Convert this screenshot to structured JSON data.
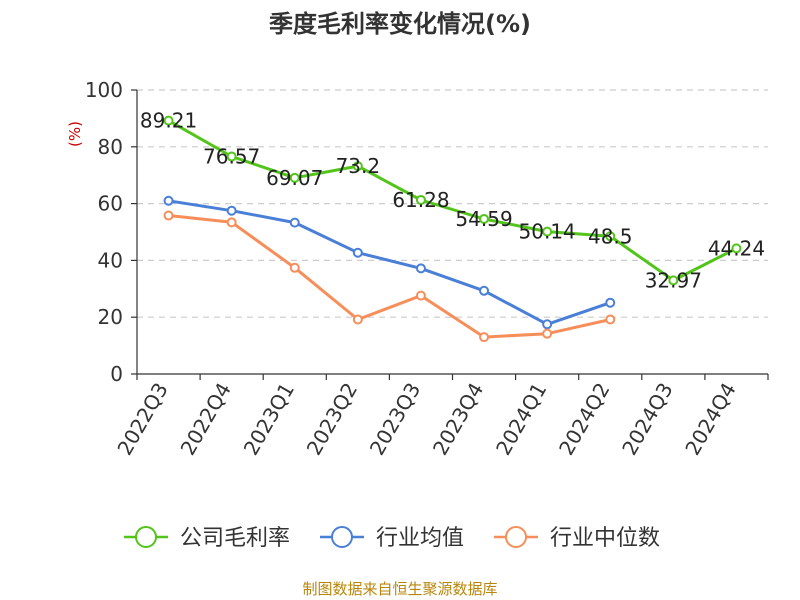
{
  "chart_data": {
    "type": "line",
    "title": "季度毛利率变化情况(%)",
    "xlabel": "",
    "ylabel": "(%)",
    "ylim": [
      0,
      100
    ],
    "yticks": [
      0,
      20,
      40,
      60,
      80,
      100
    ],
    "grid": true,
    "legend_position": "bottom",
    "categories": [
      "2022Q3",
      "2022Q4",
      "2023Q1",
      "2023Q2",
      "2023Q3",
      "2023Q4",
      "2024Q1",
      "2024Q2",
      "2024Q3",
      "2024Q4"
    ],
    "series": [
      {
        "name": "公司毛利率",
        "color": "#52c41a",
        "values": [
          89.21,
          76.57,
          69.07,
          73.2,
          61.28,
          54.59,
          50.14,
          48.5,
          32.97,
          44.24
        ],
        "labels": [
          "89.21",
          "76.57",
          "69.07",
          "73.2",
          "61.28",
          "54.59",
          "50.14",
          "48.5",
          "32.97",
          "44.24"
        ]
      },
      {
        "name": "行业均值",
        "color": "#4a7fd8",
        "values": [
          61,
          57.5,
          53.3,
          42.7,
          37.2,
          29.3,
          17.5,
          25.1,
          null,
          null
        ]
      },
      {
        "name": "行业中位数",
        "color": "#f78e5a",
        "values": [
          55.8,
          53.4,
          37.4,
          19.2,
          27.6,
          13,
          14.2,
          19.2,
          null,
          null
        ]
      }
    ],
    "source": "制图数据来自恒生聚源数据库"
  }
}
